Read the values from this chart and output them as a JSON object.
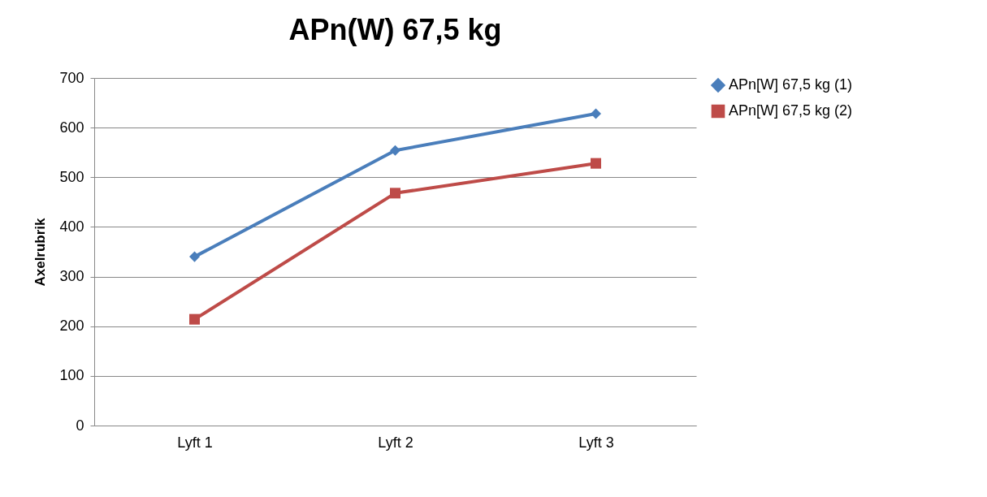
{
  "chart_data": {
    "type": "line",
    "title": "APn(W) 67,5 kg",
    "ylabel": "Axelrubrik",
    "categories": [
      "Lyft 1",
      "Lyft 2",
      "Lyft 3"
    ],
    "series": [
      {
        "name": "APn[W] 67,5 kg (1)",
        "color": "#4a7ebb",
        "marker": "diamond",
        "values": [
          340,
          554,
          628
        ]
      },
      {
        "name": "APn[W] 67,5 kg (2)",
        "color": "#be4b48",
        "marker": "square",
        "values": [
          214,
          468,
          528
        ]
      }
    ],
    "ylim": [
      0,
      700
    ],
    "yticks": [
      0,
      100,
      200,
      300,
      400,
      500,
      600,
      700
    ],
    "grid": "y",
    "legend": "right",
    "line_style": "solid"
  }
}
